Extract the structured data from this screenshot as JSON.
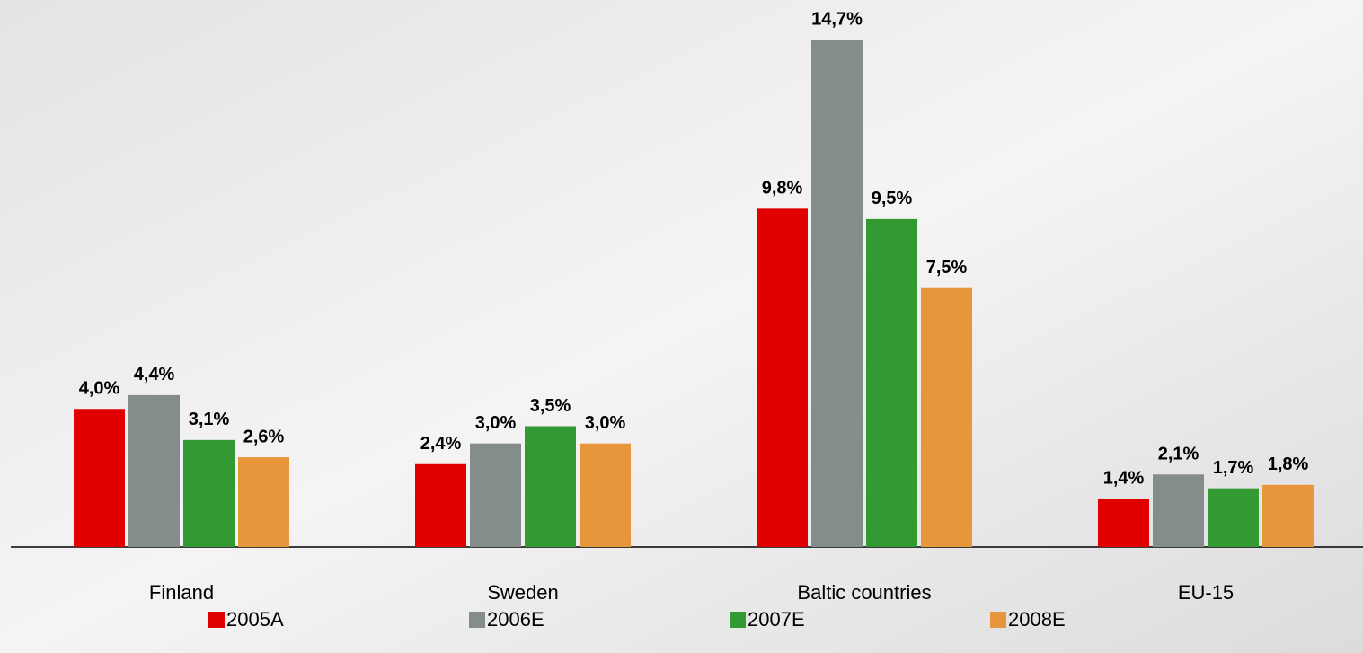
{
  "chart_data": {
    "type": "bar",
    "categories": [
      "Finland",
      "Sweden",
      "Baltic countries",
      "EU-15"
    ],
    "series": [
      {
        "name": "2005A",
        "color": "#e00000",
        "values": [
          4.0,
          2.4,
          9.8,
          1.4
        ],
        "value_labels": [
          "4,0%",
          "2,4%",
          "9,8%",
          "1,4%"
        ]
      },
      {
        "name": "2006E",
        "color": "#858c8c",
        "values": [
          4.4,
          3.0,
          14.7,
          2.1
        ],
        "value_labels": [
          "4,4%",
          "3,0%",
          "14,7%",
          "2,1%"
        ]
      },
      {
        "name": "2007E",
        "color": "#339933",
        "values": [
          3.1,
          3.5,
          9.5,
          1.7
        ],
        "value_labels": [
          "3,1%",
          "3,5%",
          "9,5%",
          "1,7%"
        ]
      },
      {
        "name": "2008E",
        "color": "#e8963c",
        "values": [
          2.6,
          3.0,
          7.5,
          1.8
        ],
        "value_labels": [
          "2,6%",
          "3,0%",
          "7,5%",
          "1,8%"
        ]
      }
    ]
  }
}
